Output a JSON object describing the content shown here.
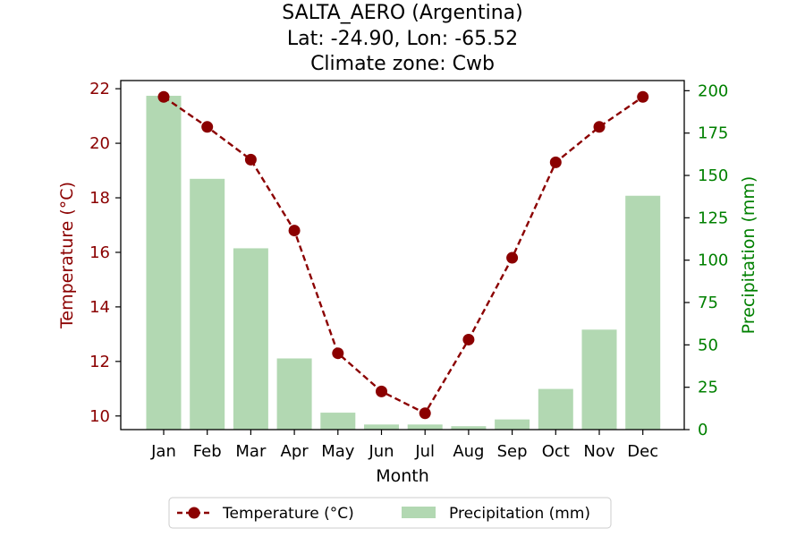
{
  "chart_data": {
    "type": "bar+line",
    "title": [
      "SALTA_AERO (Argentina)",
      "Lat: -24.90, Lon: -65.52",
      "Climate zone: Cwb"
    ],
    "xlabel": "Month",
    "categories": [
      "Jan",
      "Feb",
      "Mar",
      "Apr",
      "May",
      "Jun",
      "Jul",
      "Aug",
      "Sep",
      "Oct",
      "Nov",
      "Dec"
    ],
    "series": [
      {
        "name": "Temperature (°C)",
        "type": "line",
        "axis": "left",
        "color": "#8b0000",
        "style": "dashed-with-circles",
        "values": [
          21.7,
          20.6,
          19.4,
          16.8,
          12.3,
          10.9,
          10.1,
          12.8,
          15.8,
          19.3,
          20.6,
          21.7
        ]
      },
      {
        "name": "Precipitation (mm)",
        "type": "bar",
        "axis": "right",
        "color": "#b2d8b2",
        "values": [
          197,
          148,
          107,
          42,
          10,
          3,
          3,
          2,
          6,
          24,
          59,
          138
        ]
      }
    ],
    "y_left": {
      "label": "Temperature (°C)",
      "color": "#8b0000",
      "range": [
        9.5,
        22.3
      ],
      "ticks": [
        10,
        12,
        14,
        16,
        18,
        20,
        22
      ]
    },
    "y_right": {
      "label": "Precipitation (mm)",
      "color": "#008000",
      "range": [
        0,
        206
      ],
      "ticks": [
        0,
        25,
        50,
        75,
        100,
        125,
        150,
        175,
        200
      ]
    },
    "legend": {
      "position": "bottom-center",
      "entries": [
        "Temperature (°C)",
        "Precipitation (mm)"
      ]
    },
    "grid": false
  }
}
